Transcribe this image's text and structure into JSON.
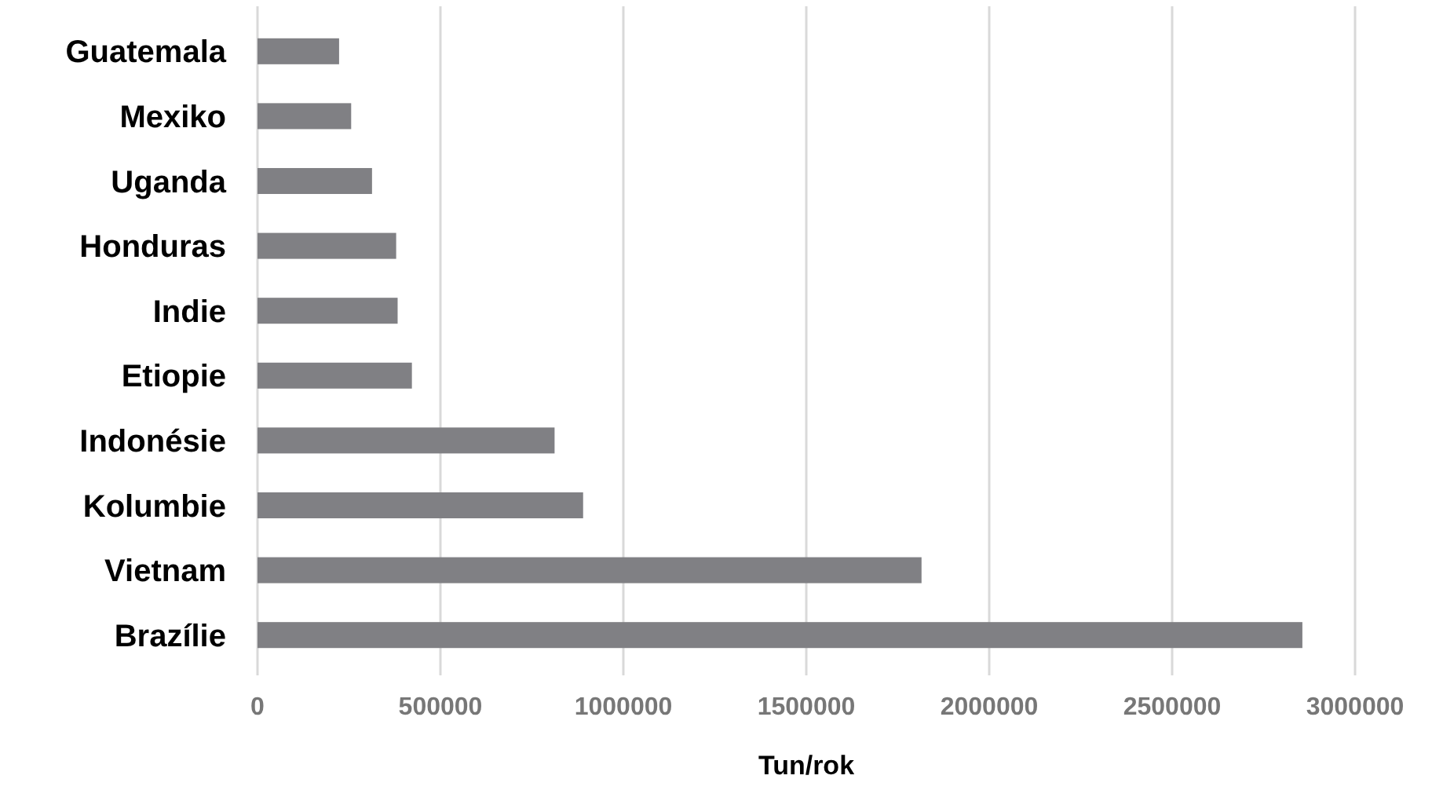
{
  "chart_data": {
    "type": "bar",
    "orientation": "horizontal",
    "xlabel": "Tun/rok",
    "categories": [
      "Guatemala",
      "Mexiko",
      "Uganda",
      "Honduras",
      "Indie",
      "Etiopie",
      "Indonésie",
      "Kolumbie",
      "Vietnam",
      "Brazílie"
    ],
    "values": [
      223000,
      256000,
      313000,
      379000,
      383000,
      422000,
      812000,
      890000,
      1815000,
      2856000
    ],
    "color": "#808084",
    "xlim": [
      0,
      3000000
    ],
    "xticks": [
      0,
      500000,
      1000000,
      1500000,
      2000000,
      2500000,
      3000000
    ],
    "grid": "x"
  }
}
